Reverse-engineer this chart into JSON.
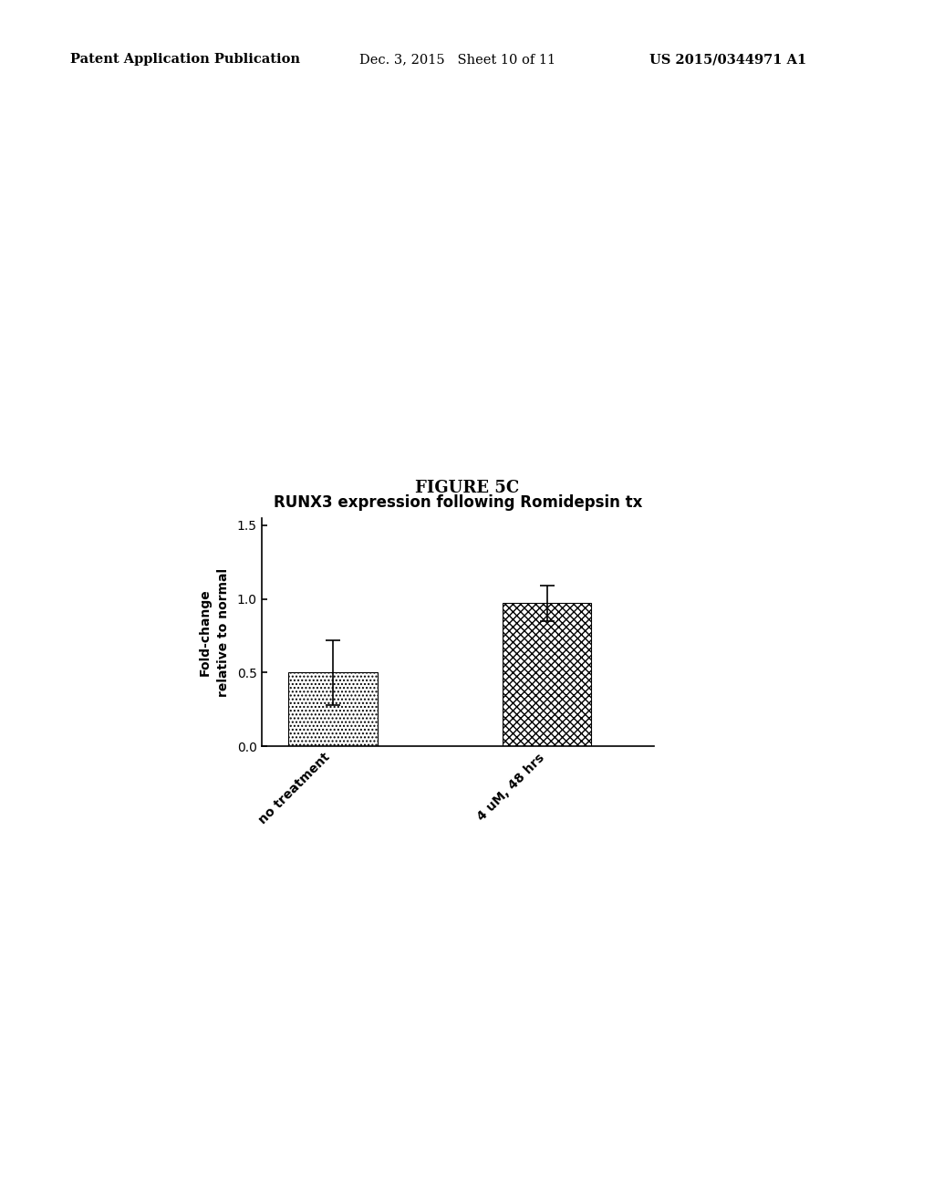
{
  "title": "RUNX3 expression following Romidepsin tx",
  "ylabel": "Fold-change\nrelative to normal",
  "categories": [
    "no treatment",
    "4 uM, 48 hrs"
  ],
  "values": [
    0.5,
    0.97
  ],
  "errors": [
    0.22,
    0.12
  ],
  "ylim": [
    0.0,
    1.55
  ],
  "yticks": [
    0.0,
    0.5,
    1.0,
    1.5
  ],
  "bar_width": 0.5,
  "bar_positions": [
    1,
    2.2
  ],
  "figure_label": "FIGURE 5C",
  "header_left": "Patent Application Publication",
  "header_center": "Dec. 3, 2015   Sheet 10 of 11",
  "header_right": "US 2015/0344971 A1",
  "bg_color": "#ffffff"
}
